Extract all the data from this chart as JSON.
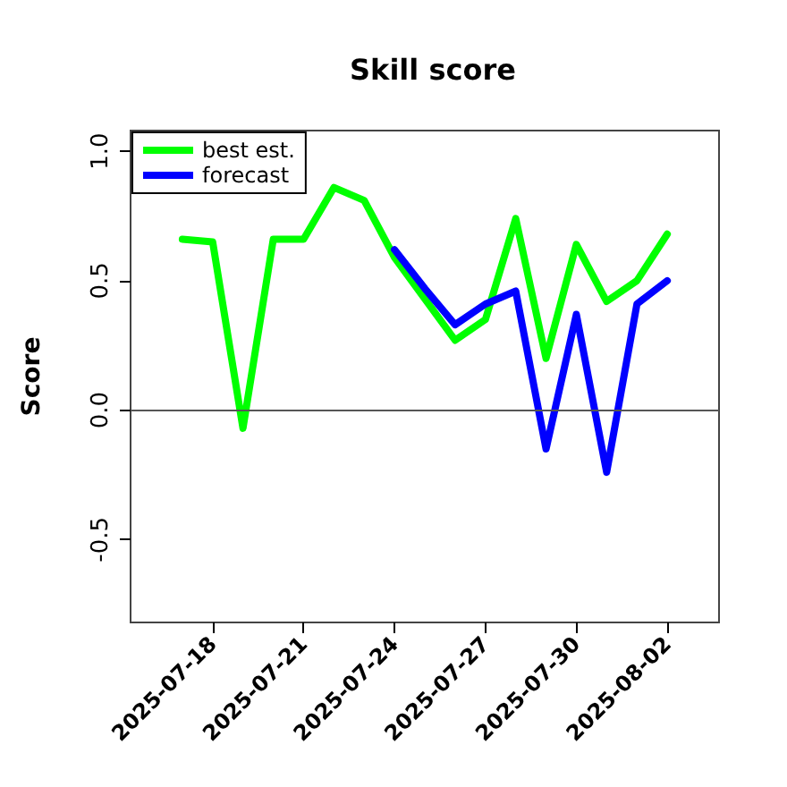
{
  "chart_data": {
    "type": "line",
    "title": "Skill score",
    "ylabel": "Score",
    "x": [
      "2025-07-17",
      "2025-07-18",
      "2025-07-19",
      "2025-07-20",
      "2025-07-21",
      "2025-07-22",
      "2025-07-23",
      "2025-07-24",
      "2025-07-25",
      "2025-07-26",
      "2025-07-27",
      "2025-07-28",
      "2025-07-29",
      "2025-07-30",
      "2025-07-31",
      "2025-08-01",
      "2025-08-02"
    ],
    "series": [
      {
        "name": "best est.",
        "color": "#00ff00",
        "values": [
          0.66,
          0.65,
          -0.07,
          0.66,
          0.66,
          0.86,
          0.81,
          0.59,
          0.43,
          0.27,
          0.35,
          0.74,
          0.2,
          0.64,
          0.42,
          0.5,
          0.68
        ]
      },
      {
        "name": "forecast",
        "color": "#0000ff",
        "x": [
          "2025-07-24",
          "2025-07-25",
          "2025-07-26",
          "2025-07-27",
          "2025-07-28",
          "2025-07-29",
          "2025-07-30",
          "2025-07-31",
          "2025-08-01",
          "2025-08-02"
        ],
        "values": [
          0.62,
          0.47,
          0.33,
          0.41,
          0.46,
          -0.15,
          0.37,
          -0.24,
          0.41,
          0.5
        ]
      }
    ],
    "xlim": [
      "2025-07-15T07:00",
      "2025-08-03T17:00"
    ],
    "xticks": [
      "2025-07-18",
      "2025-07-21",
      "2025-07-24",
      "2025-07-27",
      "2025-07-30",
      "2025-08-02"
    ],
    "ylim": [
      -0.82,
      1.08
    ],
    "yticks": [
      -0.5,
      {
        "value": 0,
        "label": "0.0"
      },
      0.5,
      {
        "value": 1,
        "label": "1.0"
      }
    ],
    "ref_lines": [
      {
        "axis": "y",
        "value": 0,
        "color": "#555555",
        "line_style": "solid"
      }
    ],
    "grid": false,
    "legend": "top left",
    "marker": "none",
    "line_style": "solid"
  }
}
